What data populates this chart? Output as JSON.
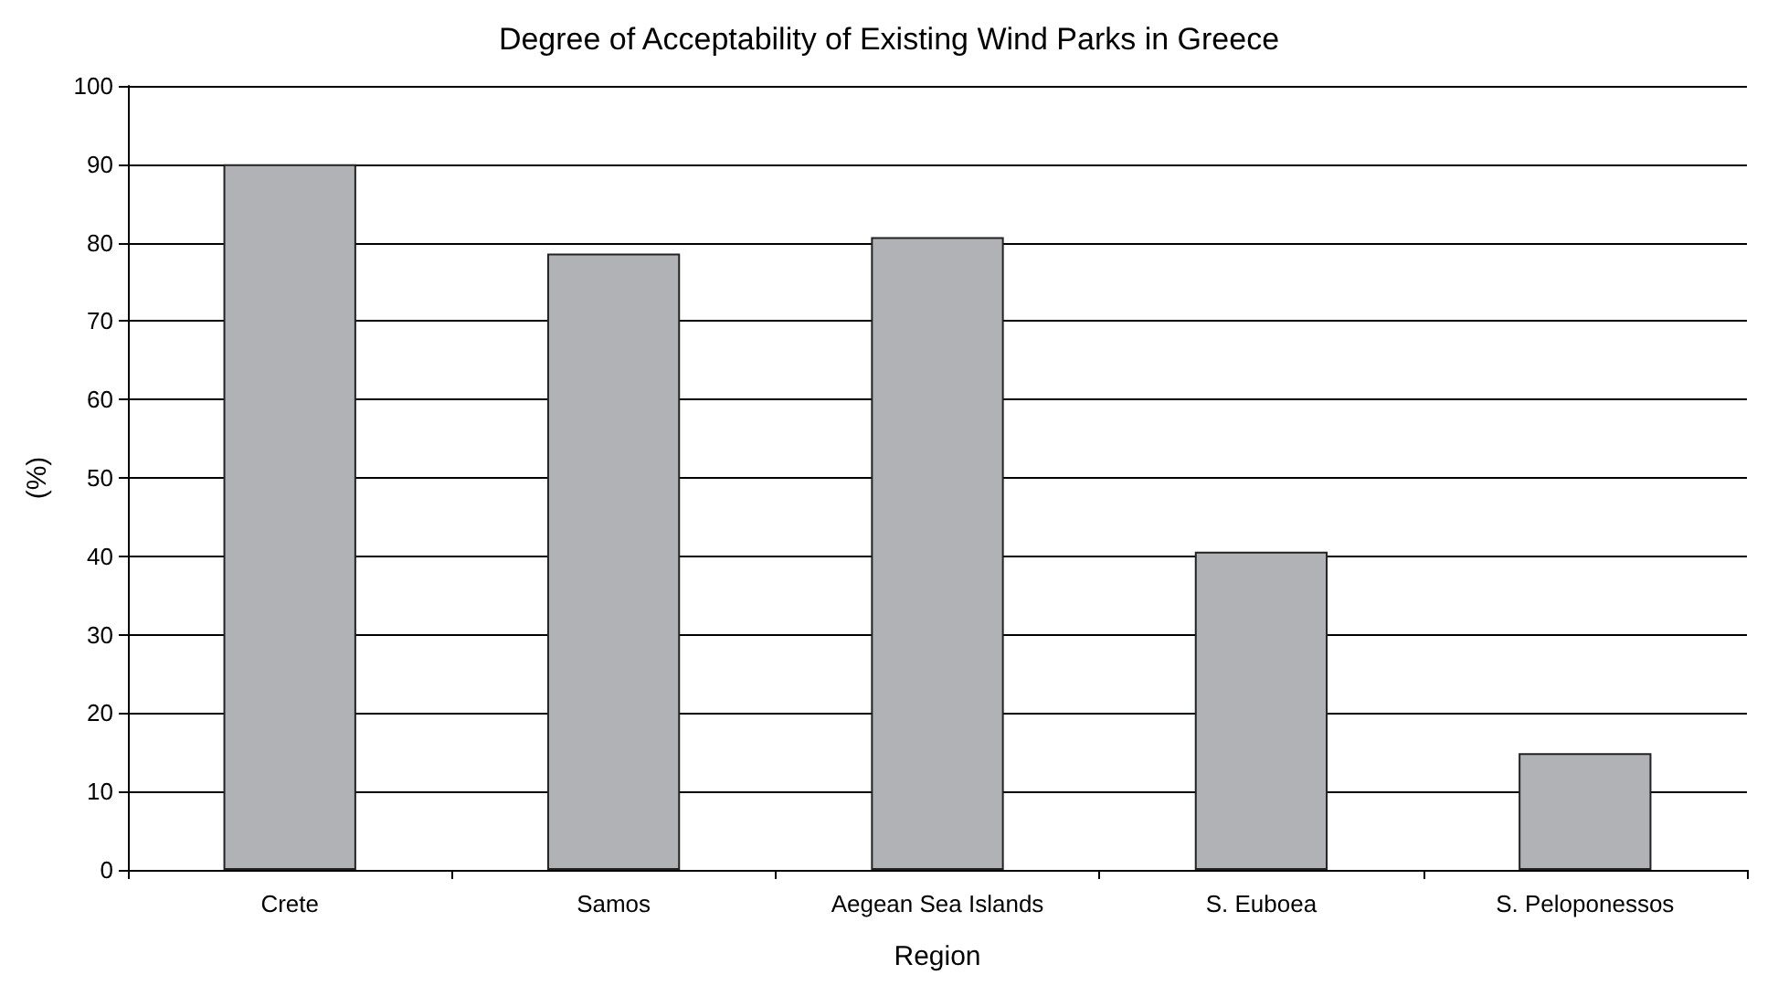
{
  "chart_data": {
    "type": "bar",
    "title": "Degree of Acceptability of Existing Wind Parks in Greece",
    "xlabel": "Region",
    "ylabel": "(%)",
    "categories": [
      "Crete",
      "Samos",
      "Aegean Sea Islands",
      "S. Euboea",
      "S. Peloponessos"
    ],
    "values": [
      90,
      78.6,
      80.7,
      40.6,
      14.9
    ],
    "color": "#b1b2b6",
    "ylim": [
      0,
      100
    ],
    "yticks": [
      0,
      10,
      20,
      30,
      40,
      50,
      60,
      70,
      80,
      90,
      100
    ],
    "grid": "y"
  }
}
